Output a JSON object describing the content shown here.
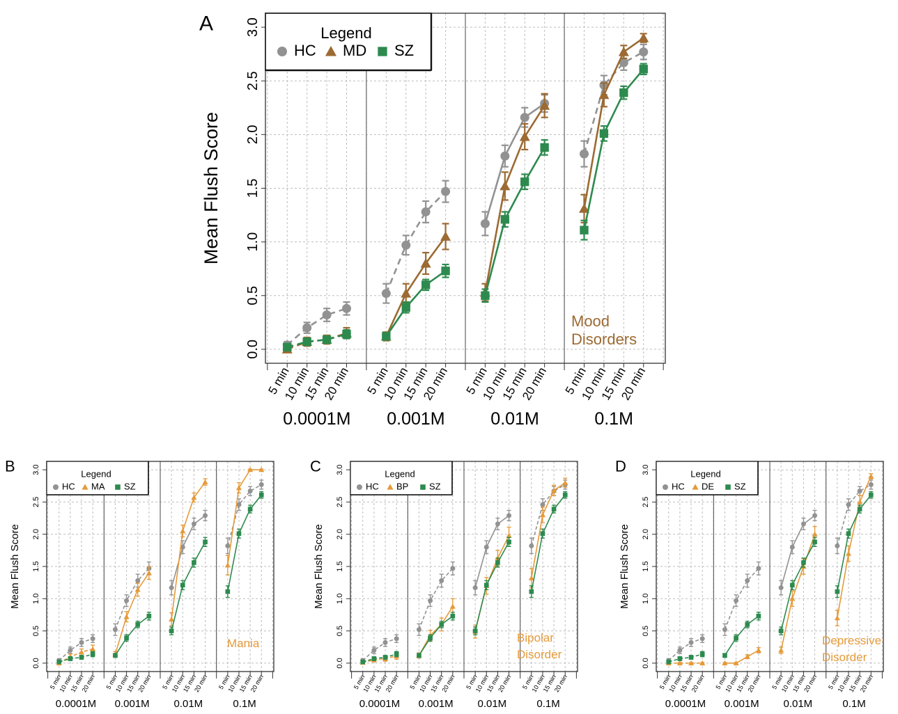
{
  "colors": {
    "HC": "#929292",
    "SZ": "#2d8a4e",
    "MD": "#9c6a32",
    "orange": "#e59a3a",
    "grid": "#bdbdbd"
  },
  "common": {
    "ylabel": "Mean Flush Score",
    "time_labels": [
      "5 min",
      "10 min",
      "15 min",
      "20 min"
    ],
    "concentrations": [
      "0.0001M",
      "0.001M",
      "0.01M",
      "0.1M"
    ],
    "yticks": [
      "0.0",
      "0.5",
      "1.0",
      "1.5",
      "2.0",
      "2.5",
      "3.0"
    ],
    "legend_title": "Legend"
  },
  "chart_data": [
    {
      "panel": "A",
      "type": "line",
      "ylabel": "Mean Flush Score",
      "ylim": [
        0,
        3
      ],
      "annotation": [
        "Mood",
        "Disorders"
      ],
      "annotation_color": "#9c6a32",
      "legend": [
        "HC",
        "MD",
        "SZ"
      ],
      "groups": [
        "0.0001M",
        "0.001M",
        "0.01M",
        "0.1M"
      ],
      "x": [
        "5 min",
        "10 min",
        "15 min",
        "20 min"
      ],
      "series": [
        {
          "name": "HC",
          "color": "#929292",
          "marker": "circle",
          "values": [
            [
              0.04,
              0.2,
              0.32,
              0.38
            ],
            [
              0.52,
              0.97,
              1.28,
              1.47
            ],
            [
              1.17,
              1.8,
              2.16,
              2.29
            ],
            [
              1.82,
              2.46,
              2.67,
              2.77
            ]
          ],
          "err": [
            [
              0.03,
              0.05,
              0.06,
              0.06
            ],
            [
              0.09,
              0.09,
              0.1,
              0.1
            ],
            [
              0.11,
              0.1,
              0.09,
              0.08
            ],
            [
              0.12,
              0.09,
              0.07,
              0.07
            ]
          ]
        },
        {
          "name": "MD",
          "color": "#9c6a32",
          "marker": "triangle",
          "values": [
            [
              0.0,
              0.07,
              0.09,
              0.15
            ],
            [
              0.12,
              0.52,
              0.8,
              1.05
            ],
            [
              0.53,
              1.52,
              1.98,
              2.27
            ],
            [
              1.31,
              2.37,
              2.77,
              2.9
            ]
          ],
          "err": [
            [
              0.02,
              0.04,
              0.04,
              0.05
            ],
            [
              0.04,
              0.09,
              0.1,
              0.12
            ],
            [
              0.08,
              0.13,
              0.12,
              0.11
            ],
            [
              0.13,
              0.11,
              0.06,
              0.04
            ]
          ]
        },
        {
          "name": "SZ",
          "color": "#2d8a4e",
          "marker": "square",
          "values": [
            [
              0.02,
              0.07,
              0.09,
              0.14
            ],
            [
              0.12,
              0.39,
              0.6,
              0.73
            ],
            [
              0.5,
              1.21,
              1.56,
              1.88
            ],
            [
              1.11,
              2.01,
              2.39,
              2.61
            ]
          ],
          "err": [
            [
              0.02,
              0.03,
              0.03,
              0.04
            ],
            [
              0.03,
              0.05,
              0.05,
              0.06
            ],
            [
              0.06,
              0.07,
              0.07,
              0.07
            ],
            [
              0.09,
              0.07,
              0.06,
              0.05
            ]
          ]
        }
      ]
    },
    {
      "panel": "B",
      "type": "line",
      "ylabel": "Mean Flush Score",
      "ylim": [
        0,
        3
      ],
      "annotation": [
        "Mania"
      ],
      "annotation_color": "#e59a3a",
      "legend": [
        "HC",
        "MA",
        "SZ"
      ],
      "groups": [
        "0.0001M",
        "0.001M",
        "0.01M",
        "0.1M"
      ],
      "x": [
        "5 min",
        "10 min",
        "15 min",
        "20 min"
      ],
      "series": [
        {
          "name": "HC",
          "color": "#929292",
          "marker": "circle",
          "values": [
            [
              0.04,
              0.2,
              0.32,
              0.38
            ],
            [
              0.52,
              0.97,
              1.28,
              1.47
            ],
            [
              1.17,
              1.8,
              2.16,
              2.29
            ],
            [
              1.82,
              2.46,
              2.67,
              2.77
            ]
          ],
          "err": [
            [
              0.03,
              0.05,
              0.06,
              0.06
            ],
            [
              0.09,
              0.09,
              0.1,
              0.1
            ],
            [
              0.11,
              0.1,
              0.09,
              0.08
            ],
            [
              0.12,
              0.09,
              0.07,
              0.07
            ]
          ]
        },
        {
          "name": "MA",
          "color": "#e59a3a",
          "marker": "triangle",
          "values": [
            [
              0.0,
              0.1,
              0.17,
              0.22
            ],
            [
              0.14,
              0.72,
              1.14,
              1.4
            ],
            [
              0.68,
              2.05,
              2.57,
              2.81
            ],
            [
              1.52,
              2.72,
              3.0,
              3.0
            ]
          ],
          "err": [
            [
              0.02,
              0.04,
              0.05,
              0.06
            ],
            [
              0.04,
              0.08,
              0.1,
              0.1
            ],
            [
              0.1,
              0.09,
              0.07,
              0.05
            ],
            [
              0.15,
              0.08,
              0.01,
              0.01
            ]
          ]
        },
        {
          "name": "SZ",
          "color": "#2d8a4e",
          "marker": "square",
          "values": [
            [
              0.02,
              0.07,
              0.09,
              0.14
            ],
            [
              0.12,
              0.39,
              0.6,
              0.73
            ],
            [
              0.5,
              1.21,
              1.56,
              1.88
            ],
            [
              1.11,
              2.01,
              2.39,
              2.61
            ]
          ],
          "err": [
            [
              0.02,
              0.03,
              0.03,
              0.04
            ],
            [
              0.03,
              0.05,
              0.05,
              0.06
            ],
            [
              0.06,
              0.07,
              0.07,
              0.07
            ],
            [
              0.09,
              0.07,
              0.06,
              0.05
            ]
          ]
        }
      ]
    },
    {
      "panel": "C",
      "type": "line",
      "ylabel": "Mean Flush Score",
      "ylim": [
        0,
        3
      ],
      "annotation": [
        "Bipolar",
        "Disorder"
      ],
      "annotation_color": "#e59a3a",
      "legend": [
        "HC",
        "BP",
        "SZ"
      ],
      "groups": [
        "0.0001M",
        "0.001M",
        "0.01M",
        "0.1M"
      ],
      "x": [
        "5 min",
        "10 min",
        "15 min",
        "20 min"
      ],
      "series": [
        {
          "name": "HC",
          "color": "#929292",
          "marker": "circle",
          "values": [
            [
              0.04,
              0.2,
              0.32,
              0.38
            ],
            [
              0.52,
              0.97,
              1.28,
              1.47
            ],
            [
              1.17,
              1.8,
              2.16,
              2.29
            ],
            [
              1.82,
              2.46,
              2.67,
              2.77
            ]
          ],
          "err": [
            [
              0.03,
              0.05,
              0.06,
              0.06
            ],
            [
              0.09,
              0.09,
              0.1,
              0.1
            ],
            [
              0.11,
              0.1,
              0.09,
              0.08
            ],
            [
              0.12,
              0.09,
              0.07,
              0.07
            ]
          ]
        },
        {
          "name": "BP",
          "color": "#e59a3a",
          "marker": "triangle",
          "values": [
            [
              0.01,
              0.05,
              0.07,
              0.11
            ],
            [
              0.12,
              0.43,
              0.6,
              0.88
            ],
            [
              0.49,
              1.2,
              1.63,
              1.98
            ],
            [
              1.32,
              2.3,
              2.68,
              2.8
            ]
          ],
          "err": [
            [
              0.02,
              0.03,
              0.04,
              0.05
            ],
            [
              0.04,
              0.08,
              0.1,
              0.12
            ],
            [
              0.1,
              0.13,
              0.12,
              0.13
            ],
            [
              0.15,
              0.12,
              0.08,
              0.07
            ]
          ]
        },
        {
          "name": "SZ",
          "color": "#2d8a4e",
          "marker": "square",
          "values": [
            [
              0.02,
              0.07,
              0.09,
              0.14
            ],
            [
              0.12,
              0.39,
              0.6,
              0.73
            ],
            [
              0.5,
              1.21,
              1.56,
              1.88
            ],
            [
              1.11,
              2.01,
              2.39,
              2.61
            ]
          ],
          "err": [
            [
              0.02,
              0.03,
              0.03,
              0.04
            ],
            [
              0.03,
              0.05,
              0.05,
              0.06
            ],
            [
              0.06,
              0.07,
              0.07,
              0.07
            ],
            [
              0.09,
              0.07,
              0.06,
              0.05
            ]
          ]
        }
      ]
    },
    {
      "panel": "D",
      "type": "line",
      "ylabel": "Mean Flush Score",
      "ylim": [
        0,
        3
      ],
      "annotation": [
        "Depressive",
        "Disorder"
      ],
      "annotation_color": "#e59a3a",
      "legend": [
        "HC",
        "DE",
        "SZ"
      ],
      "groups": [
        "0.0001M",
        "0.001M",
        "0.01M",
        "0.1M"
      ],
      "x": [
        "5 min",
        "10 min",
        "15 min",
        "20 min"
      ],
      "series": [
        {
          "name": "HC",
          "color": "#929292",
          "marker": "circle",
          "values": [
            [
              0.04,
              0.2,
              0.32,
              0.38
            ],
            [
              0.52,
              0.97,
              1.28,
              1.47
            ],
            [
              1.17,
              1.8,
              2.16,
              2.29
            ],
            [
              1.82,
              2.46,
              2.67,
              2.77
            ]
          ],
          "err": [
            [
              0.03,
              0.05,
              0.06,
              0.06
            ],
            [
              0.09,
              0.09,
              0.1,
              0.1
            ],
            [
              0.11,
              0.1,
              0.09,
              0.08
            ],
            [
              0.12,
              0.09,
              0.07,
              0.07
            ]
          ]
        },
        {
          "name": "DE",
          "color": "#e59a3a",
          "marker": "triangle",
          "values": [
            [
              0.0,
              0.0,
              0.0,
              0.0
            ],
            [
              0.0,
              0.0,
              0.1,
              0.2
            ],
            [
              0.2,
              1.0,
              1.5,
              2.0
            ],
            [
              0.7,
              1.7,
              2.5,
              2.9
            ]
          ],
          "err": [
            [
              0.01,
              0.01,
              0.01,
              0.01
            ],
            [
              0.01,
              0.01,
              0.03,
              0.04
            ],
            [
              0.05,
              0.12,
              0.12,
              0.12
            ],
            [
              0.12,
              0.12,
              0.1,
              0.04
            ]
          ]
        },
        {
          "name": "SZ",
          "color": "#2d8a4e",
          "marker": "square",
          "values": [
            [
              0.02,
              0.07,
              0.09,
              0.14
            ],
            [
              0.12,
              0.39,
              0.6,
              0.73
            ],
            [
              0.5,
              1.21,
              1.56,
              1.88
            ],
            [
              1.11,
              2.01,
              2.39,
              2.61
            ]
          ],
          "err": [
            [
              0.02,
              0.03,
              0.03,
              0.04
            ],
            [
              0.03,
              0.05,
              0.05,
              0.06
            ],
            [
              0.06,
              0.07,
              0.07,
              0.07
            ],
            [
              0.09,
              0.07,
              0.06,
              0.05
            ]
          ]
        }
      ]
    }
  ]
}
